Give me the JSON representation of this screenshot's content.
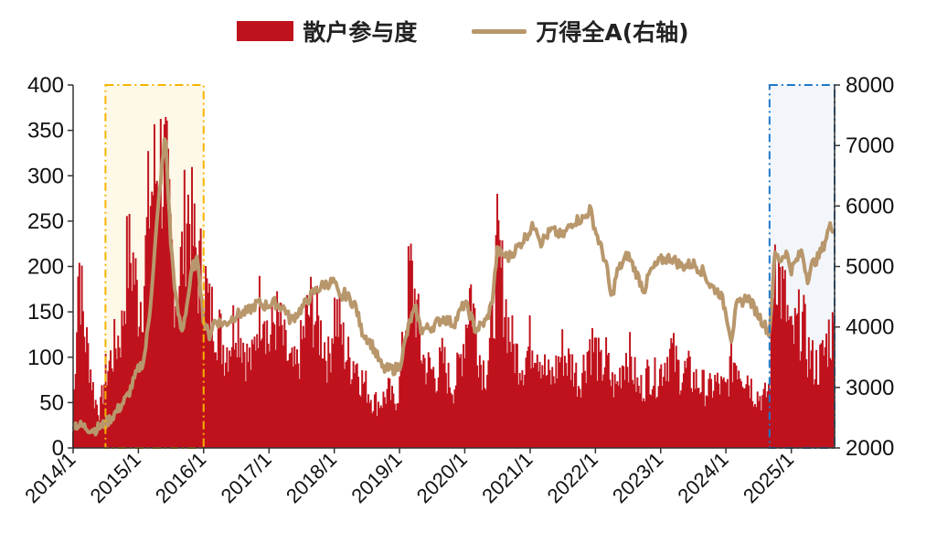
{
  "chart_data": {
    "type": "bar+line",
    "legend_placement": "top-center",
    "grid": false,
    "series": [
      {
        "name": "散户参与度",
        "type": "bar",
        "axis": "left",
        "color": "#c0121c",
        "anchors": [
          [
            "2014-01-01",
            20
          ],
          [
            "2014-02-01",
            240
          ],
          [
            "2014-03-01",
            150
          ],
          [
            "2014-04-01",
            110
          ],
          [
            "2014-05-01",
            60
          ],
          [
            "2014-06-01",
            45
          ],
          [
            "2014-07-01",
            90
          ],
          [
            "2014-08-01",
            110
          ],
          [
            "2014-09-01",
            130
          ],
          [
            "2014-10-01",
            145
          ],
          [
            "2014-11-01",
            235
          ],
          [
            "2014-12-01",
            230
          ],
          [
            "2015-01-01",
            175
          ],
          [
            "2015-02-01",
            200
          ],
          [
            "2015-03-01",
            300
          ],
          [
            "2015-04-01",
            330
          ],
          [
            "2015-05-01",
            355
          ],
          [
            "2015-06-01",
            340
          ],
          [
            "2015-07-01",
            250
          ],
          [
            "2015-08-01",
            190
          ],
          [
            "2015-09-01",
            230
          ],
          [
            "2015-10-01",
            305
          ],
          [
            "2015-11-01",
            260
          ],
          [
            "2015-12-01",
            215
          ],
          [
            "2016-01-01",
            220
          ],
          [
            "2016-02-01",
            165
          ],
          [
            "2016-03-01",
            165
          ],
          [
            "2016-04-01",
            140
          ],
          [
            "2016-05-01",
            120
          ],
          [
            "2016-06-01",
            135
          ],
          [
            "2016-07-01",
            165
          ],
          [
            "2016-08-01",
            140
          ],
          [
            "2016-09-01",
            110
          ],
          [
            "2016-10-01",
            105
          ],
          [
            "2016-11-01",
            165
          ],
          [
            "2016-12-01",
            190
          ],
          [
            "2017-01-01",
            125
          ],
          [
            "2017-02-01",
            160
          ],
          [
            "2017-03-01",
            150
          ],
          [
            "2017-04-01",
            120
          ],
          [
            "2017-05-01",
            100
          ],
          [
            "2017-06-01",
            95
          ],
          [
            "2017-07-01",
            125
          ],
          [
            "2017-08-01",
            160
          ],
          [
            "2017-09-01",
            175
          ],
          [
            "2017-10-01",
            150
          ],
          [
            "2017-11-01",
            135
          ],
          [
            "2017-12-01",
            105
          ],
          [
            "2018-01-01",
            170
          ],
          [
            "2018-02-01",
            150
          ],
          [
            "2018-03-01",
            120
          ],
          [
            "2018-04-01",
            105
          ],
          [
            "2018-05-01",
            110
          ],
          [
            "2018-06-01",
            85
          ],
          [
            "2018-07-01",
            75
          ],
          [
            "2018-08-01",
            60
          ],
          [
            "2018-09-01",
            55
          ],
          [
            "2018-10-01",
            60
          ],
          [
            "2018-11-01",
            70
          ],
          [
            "2018-12-01",
            55
          ],
          [
            "2019-01-01",
            75
          ],
          [
            "2019-02-01",
            150
          ],
          [
            "2019-03-01",
            220
          ],
          [
            "2019-04-01",
            180
          ],
          [
            "2019-05-01",
            120
          ],
          [
            "2019-06-01",
            100
          ],
          [
            "2019-07-01",
            95
          ],
          [
            "2019-08-01",
            90
          ],
          [
            "2019-09-01",
            110
          ],
          [
            "2019-10-01",
            85
          ],
          [
            "2019-11-01",
            75
          ],
          [
            "2019-12-01",
            100
          ],
          [
            "2020-01-01",
            140
          ],
          [
            "2020-02-01",
            200
          ],
          [
            "2020-03-01",
            150
          ],
          [
            "2020-04-01",
            105
          ],
          [
            "2020-05-01",
            95
          ],
          [
            "2020-06-01",
            140
          ],
          [
            "2020-07-01",
            240
          ],
          [
            "2020-08-01",
            200
          ],
          [
            "2020-09-01",
            150
          ],
          [
            "2020-10-01",
            120
          ],
          [
            "2020-11-01",
            110
          ],
          [
            "2020-12-01",
            105
          ],
          [
            "2021-01-01",
            130
          ],
          [
            "2021-02-01",
            135
          ],
          [
            "2021-03-01",
            115
          ],
          [
            "2021-04-01",
            90
          ],
          [
            "2021-05-01",
            85
          ],
          [
            "2021-06-01",
            100
          ],
          [
            "2021-07-01",
            120
          ],
          [
            "2021-08-01",
            105
          ],
          [
            "2021-09-01",
            100
          ],
          [
            "2021-10-01",
            80
          ],
          [
            "2021-11-01",
            105
          ],
          [
            "2021-12-01",
            130
          ],
          [
            "2022-01-01",
            120
          ],
          [
            "2022-02-01",
            95
          ],
          [
            "2022-03-01",
            110
          ],
          [
            "2022-04-01",
            80
          ],
          [
            "2022-05-01",
            75
          ],
          [
            "2022-06-01",
            105
          ],
          [
            "2022-07-01",
            120
          ],
          [
            "2022-08-01",
            95
          ],
          [
            "2022-09-01",
            70
          ],
          [
            "2022-10-01",
            80
          ],
          [
            "2022-11-01",
            95
          ],
          [
            "2022-12-01",
            85
          ],
          [
            "2023-01-01",
            95
          ],
          [
            "2023-02-01",
            110
          ],
          [
            "2023-03-01",
            120
          ],
          [
            "2023-04-01",
            100
          ],
          [
            "2023-05-01",
            90
          ],
          [
            "2023-06-01",
            95
          ],
          [
            "2023-07-01",
            85
          ],
          [
            "2023-08-01",
            80
          ],
          [
            "2023-09-01",
            75
          ],
          [
            "2023-10-01",
            70
          ],
          [
            "2023-11-01",
            80
          ],
          [
            "2023-12-01",
            75
          ],
          [
            "2024-01-01",
            70
          ],
          [
            "2024-02-01",
            105
          ],
          [
            "2024-03-01",
            110
          ],
          [
            "2024-04-01",
            95
          ],
          [
            "2024-05-01",
            90
          ],
          [
            "2024-06-01",
            70
          ],
          [
            "2024-07-01",
            65
          ],
          [
            "2024-08-01",
            60
          ],
          [
            "2024-09-01",
            75
          ],
          [
            "2024-10-01",
            255
          ],
          [
            "2024-11-01",
            200
          ],
          [
            "2024-12-01",
            175
          ],
          [
            "2025-01-01",
            130
          ],
          [
            "2025-02-01",
            145
          ],
          [
            "2025-03-01",
            160
          ],
          [
            "2025-04-01",
            120
          ],
          [
            "2025-05-01",
            105
          ],
          [
            "2025-06-01",
            100
          ],
          [
            "2025-07-01",
            115
          ],
          [
            "2025-08-01",
            140
          ]
        ]
      },
      {
        "name": "万得全A(右轴)",
        "type": "line",
        "axis": "right",
        "color": "#b8976c",
        "anchors": [
          [
            "2014-01-01",
            2400
          ],
          [
            "2014-03-01",
            2350
          ],
          [
            "2014-05-01",
            2300
          ],
          [
            "2014-07-01",
            2400
          ],
          [
            "2014-09-01",
            2600
          ],
          [
            "2014-11-01",
            2850
          ],
          [
            "2015-01-01",
            3300
          ],
          [
            "2015-02-01",
            3450
          ],
          [
            "2015-03-01",
            4100
          ],
          [
            "2015-04-01",
            5200
          ],
          [
            "2015-05-01",
            6300
          ],
          [
            "2015-06-01",
            7200
          ],
          [
            "2015-07-01",
            5400
          ],
          [
            "2015-08-01",
            4400
          ],
          [
            "2015-09-01",
            3900
          ],
          [
            "2015-10-01",
            4400
          ],
          [
            "2015-11-01",
            5000
          ],
          [
            "2015-12-01",
            5100
          ],
          [
            "2016-01-01",
            4100
          ],
          [
            "2016-02-01",
            3850
          ],
          [
            "2016-03-01",
            4100
          ],
          [
            "2016-05-01",
            4050
          ],
          [
            "2016-07-01",
            4200
          ],
          [
            "2016-09-01",
            4250
          ],
          [
            "2016-11-01",
            4400
          ],
          [
            "2016-12-01",
            4350
          ],
          [
            "2017-02-01",
            4400
          ],
          [
            "2017-04-01",
            4300
          ],
          [
            "2017-05-01",
            4100
          ],
          [
            "2017-07-01",
            4300
          ],
          [
            "2017-09-01",
            4550
          ],
          [
            "2017-11-01",
            4700
          ],
          [
            "2018-01-01",
            4750
          ],
          [
            "2018-02-01",
            4450
          ],
          [
            "2018-03-01",
            4550
          ],
          [
            "2018-05-01",
            4350
          ],
          [
            "2018-06-01",
            3950
          ],
          [
            "2018-08-01",
            3700
          ],
          [
            "2018-10-01",
            3300
          ],
          [
            "2018-12-01",
            3300
          ],
          [
            "2019-01-01",
            3350
          ],
          [
            "2019-03-01",
            4100
          ],
          [
            "2019-04-01",
            4300
          ],
          [
            "2019-05-01",
            3950
          ],
          [
            "2019-07-01",
            4000
          ],
          [
            "2019-09-01",
            4150
          ],
          [
            "2019-11-01",
            4050
          ],
          [
            "2020-01-01",
            4400
          ],
          [
            "2020-02-01",
            4200
          ],
          [
            "2020-03-01",
            3950
          ],
          [
            "2020-05-01",
            4100
          ],
          [
            "2020-06-01",
            4400
          ],
          [
            "2020-07-01",
            5250
          ],
          [
            "2020-09-01",
            5150
          ],
          [
            "2020-11-01",
            5350
          ],
          [
            "2021-01-01",
            5600
          ],
          [
            "2021-02-01",
            5700
          ],
          [
            "2021-03-01",
            5400
          ],
          [
            "2021-05-01",
            5600
          ],
          [
            "2021-07-01",
            5500
          ],
          [
            "2021-09-01",
            5750
          ],
          [
            "2021-11-01",
            5800
          ],
          [
            "2021-12-01",
            5950
          ],
          [
            "2022-01-01",
            5600
          ],
          [
            "2022-03-01",
            5050
          ],
          [
            "2022-04-01",
            4450
          ],
          [
            "2022-05-01",
            4900
          ],
          [
            "2022-07-01",
            5200
          ],
          [
            "2022-09-01",
            4800
          ],
          [
            "2022-10-01",
            4600
          ],
          [
            "2022-11-01",
            4900
          ],
          [
            "2023-01-01",
            5100
          ],
          [
            "2023-03-01",
            5150
          ],
          [
            "2023-05-01",
            5000
          ],
          [
            "2023-07-01",
            5050
          ],
          [
            "2023-09-01",
            4900
          ],
          [
            "2023-10-01",
            4700
          ],
          [
            "2023-12-01",
            4550
          ],
          [
            "2024-01-01",
            4250
          ],
          [
            "2024-02-01",
            3800
          ],
          [
            "2024-03-01",
            4350
          ],
          [
            "2024-05-01",
            4500
          ],
          [
            "2024-07-01",
            4200
          ],
          [
            "2024-09-01",
            3900
          ],
          [
            "2024-10-01",
            5200
          ],
          [
            "2024-11-01",
            5100
          ],
          [
            "2024-12-01",
            5250
          ],
          [
            "2025-01-01",
            4950
          ],
          [
            "2025-03-01",
            5250
          ],
          [
            "2025-04-01",
            4800
          ],
          [
            "2025-05-01",
            5050
          ],
          [
            "2025-06-01",
            5150
          ],
          [
            "2025-07-01",
            5350
          ],
          [
            "2025-08-01",
            5650
          ]
        ]
      }
    ],
    "x_axis": {
      "type": "date",
      "range": [
        "2014-01-01",
        "2025-08-31"
      ],
      "tick_labels": [
        "2014/1",
        "2015/1",
        "2016/1",
        "2017/1",
        "2018/1",
        "2019/1",
        "2020/1",
        "2021/1",
        "2022/1",
        "2023/1",
        "2024/1",
        "2025/1"
      ],
      "tick_dates": [
        "2014-01-01",
        "2015-01-01",
        "2016-01-01",
        "2017-01-01",
        "2018-01-01",
        "2019-01-01",
        "2020-01-01",
        "2021-01-01",
        "2022-01-01",
        "2023-01-01",
        "2024-01-01",
        "2025-01-01"
      ]
    },
    "y_axis_left": {
      "range": [
        0,
        400
      ],
      "ticks": [
        "0",
        "50",
        "100",
        "150",
        "200",
        "250",
        "300",
        "350",
        "400"
      ]
    },
    "y_axis_right": {
      "range": [
        2000,
        8000
      ],
      "ticks": [
        "2000",
        "3000",
        "4000",
        "5000",
        "6000",
        "7000",
        "8000"
      ]
    },
    "highlight_regions": [
      {
        "start": "2014-07-01",
        "end": "2016-01-01",
        "border_color": "#f5b400",
        "fill_color": "#fdf7e4",
        "fill_opacity": 0.85,
        "border_style": "dash-dot"
      },
      {
        "start": "2024-09-01",
        "end": "2025-08-31",
        "border_color": "#1f78c8",
        "fill_color": "#e6eef7",
        "fill_opacity": 0.5,
        "border_style": "dash-dot"
      }
    ]
  }
}
